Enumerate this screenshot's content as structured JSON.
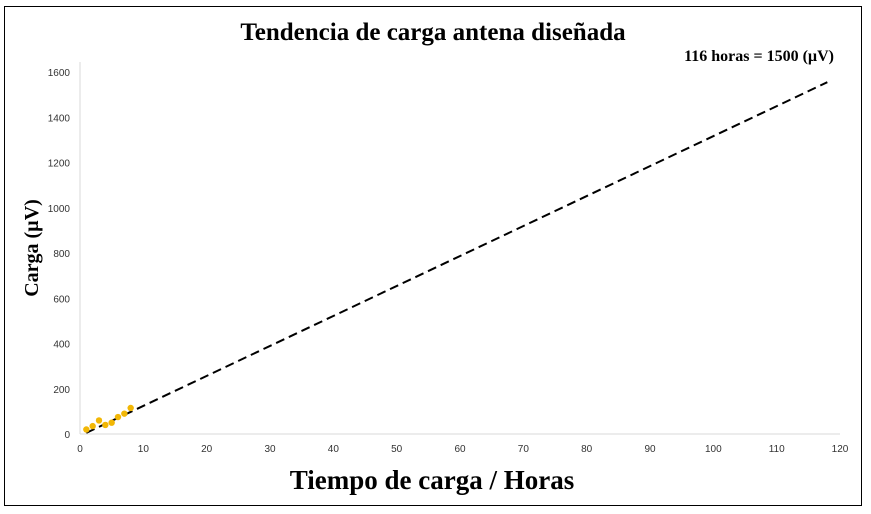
{
  "chart_data": {
    "type": "scatter",
    "title": "Tendencia de carga antena diseñada",
    "xlabel": "Tiempo de carga / Horas",
    "ylabel": "Carga (µV)",
    "annotation": "116 horas = 1500  (µV)",
    "xlim": [
      0,
      120
    ],
    "ylim": [
      0,
      1600
    ],
    "xticks": [
      0,
      10,
      20,
      30,
      40,
      50,
      60,
      70,
      80,
      90,
      100,
      110,
      120
    ],
    "yticks": [
      0,
      200,
      400,
      600,
      800,
      1000,
      1200,
      1400,
      1600
    ],
    "grid": false,
    "points": {
      "color": "#f2b705",
      "x": [
        1,
        2,
        3,
        4,
        5,
        6,
        7,
        8
      ],
      "y": [
        20,
        35,
        60,
        40,
        50,
        75,
        90,
        115
      ]
    },
    "trendline": {
      "style": "dashed",
      "color": "#000000",
      "x": [
        1,
        118
      ],
      "y": [
        5,
        1555
      ]
    }
  }
}
